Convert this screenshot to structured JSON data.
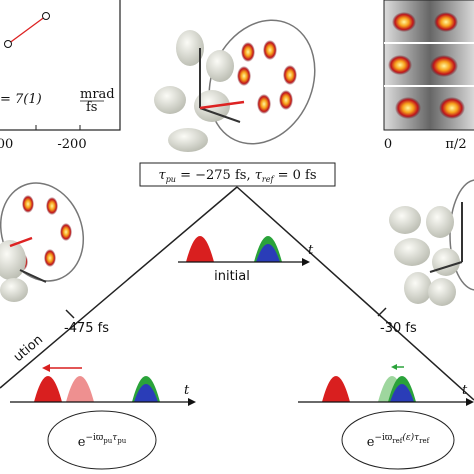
{
  "plot_panel": {
    "x_tick_labels": [
      "00",
      "-200"
    ],
    "fit_formula": [
      "= 7(1) ",
      "mrad",
      "fs"
    ]
  },
  "heatmap_panel": {
    "x_tick_labels": [
      "0",
      "π/2"
    ]
  },
  "timing_box": [
    "τ",
    "pu",
    " = −275 fs, ",
    "τ",
    "ref",
    " = 0 fs"
  ],
  "initial_pulses": {
    "axis_label": "t",
    "caption": "initial"
  },
  "left_branch": {
    "label": "ution",
    "delay": "-475 fs",
    "axis_label": "t",
    "phase": [
      "e",
      "−iϖ",
      "pu",
      "τ",
      "pu"
    ]
  },
  "right_branch": {
    "delay": "-30 fs",
    "axis_label": "t",
    "phase": [
      "e",
      "−iϖ",
      "ref",
      "(ε)τ",
      "ref"
    ]
  }
}
